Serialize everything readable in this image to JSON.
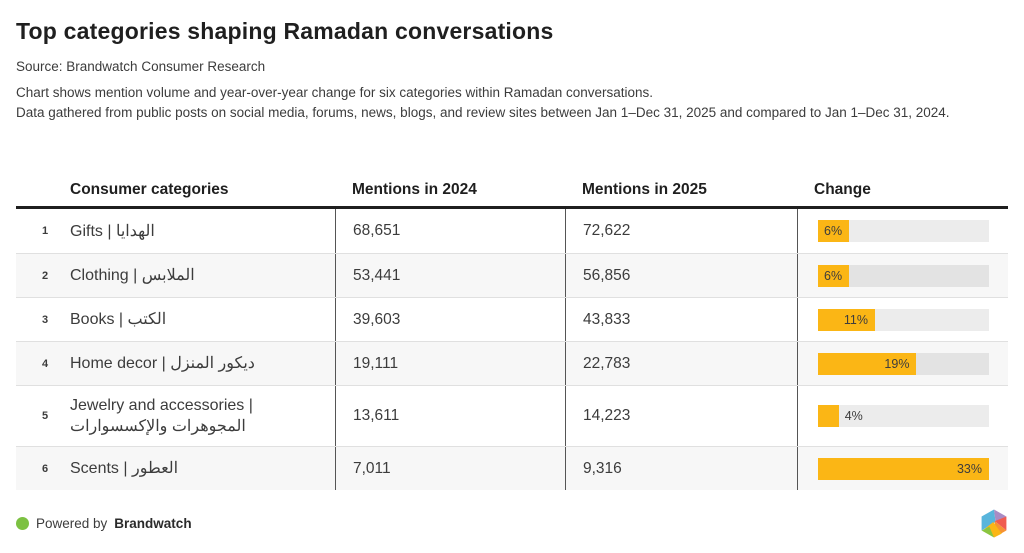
{
  "title": "Top categories shaping Ramadan conversations",
  "source": "Source: Brandwatch Consumer Research",
  "description_line1": "Chart shows mention volume and year-over-year change for six categories within Ramadan conversations.",
  "description_line2": "Data gathered from public posts on social media, forums, news, blogs, and review sites between Jan 1–Dec 31, 2025 and compared to Jan 1–Dec 31, 2024.",
  "table": {
    "headers": {
      "category": "Consumer categories",
      "mentions_2024": "Mentions in 2024",
      "mentions_2025": "Mentions in 2025",
      "change": "Change"
    },
    "max_change_pct": 33,
    "rows": [
      {
        "rank": "1",
        "category": "Gifts | الهدايا",
        "mentions_2024": "68,651",
        "mentions_2025": "72,622",
        "change_label": "6%",
        "change_pct": 6,
        "label_inside": true
      },
      {
        "rank": "2",
        "category": "Clothing | الملابس",
        "mentions_2024": "53,441",
        "mentions_2025": "56,856",
        "change_label": "6%",
        "change_pct": 6,
        "label_inside": true
      },
      {
        "rank": "3",
        "category": "Books | الكتب",
        "mentions_2024": "39,603",
        "mentions_2025": "43,833",
        "change_label": "11%",
        "change_pct": 11,
        "label_inside": true
      },
      {
        "rank": "4",
        "category": "Home decor | ديكور المنزل",
        "mentions_2024": "19,111",
        "mentions_2025": "22,783",
        "change_label": "19%",
        "change_pct": 19,
        "label_inside": true
      },
      {
        "rank": "5",
        "category": "Jewelry and accessories | المجوهرات والإكسسوارات",
        "mentions_2024": "13,611",
        "mentions_2025": "14,223",
        "change_label": "4%",
        "change_pct": 4,
        "label_inside": false
      },
      {
        "rank": "6",
        "category": "Scents | العطور",
        "mentions_2024": "7,011",
        "mentions_2025": "9,316",
        "change_label": "33%",
        "change_pct": 33,
        "label_inside": true
      }
    ]
  },
  "footer": {
    "powered_by": "Powered by",
    "brand": "Brandwatch"
  },
  "colors": {
    "bar": "#FBB615",
    "track": "#ECECEC",
    "track_alt": "#E3E3E3",
    "green_dot": "#7CC142",
    "header_line": "#1F1F1F"
  },
  "chart_data": {
    "type": "bar",
    "title": "Top categories shaping Ramadan conversations",
    "categories": [
      "Gifts | الهدايا",
      "Clothing | الملابس",
      "Books | الكتب",
      "Home decor | ديكور المنزل",
      "Jewelry and accessories | المجوهرات والإكسسوارات",
      "Scents | العطور"
    ],
    "series": [
      {
        "name": "Mentions in 2024",
        "values": [
          68651,
          53441,
          39603,
          19111,
          13611,
          7011
        ]
      },
      {
        "name": "Mentions in 2025",
        "values": [
          72622,
          56856,
          43833,
          22783,
          14223,
          9316
        ]
      },
      {
        "name": "Change %",
        "values": [
          6,
          6,
          11,
          19,
          4,
          33
        ]
      }
    ],
    "change_bar_range": [
      0,
      33
    ],
    "legend_position": "none",
    "grid": false
  }
}
